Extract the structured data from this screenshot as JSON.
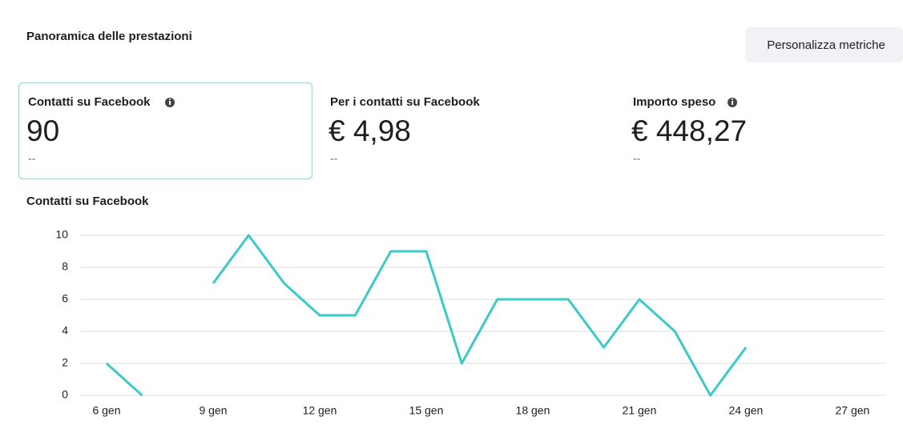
{
  "header": {
    "title": "Panoramica delle prestazioni",
    "button": "Personalizza metriche"
  },
  "metrics": [
    {
      "label": "Contatti su Facebook",
      "value": "90",
      "change": "--"
    },
    {
      "label": "Per i contatti su Facebook",
      "value": "€ 4,98",
      "change": "--"
    },
    {
      "label": "Importo speso",
      "value": "€ 448,27",
      "change": "--"
    }
  ],
  "chart_data": {
    "type": "line",
    "title": "Contatti su Facebook",
    "categories": [
      "6 gen",
      null,
      null,
      "9 gen",
      null,
      null,
      "12 gen",
      null,
      null,
      "15 gen",
      null,
      null,
      "18 gen",
      null,
      null,
      "21 gen",
      null,
      null,
      "24 gen",
      null,
      null,
      "27 gen"
    ],
    "values": [
      2,
      0,
      null,
      7,
      10,
      7,
      5,
      5,
      9,
      9,
      2,
      6,
      6,
      6,
      3,
      6,
      4,
      0,
      3,
      null,
      null,
      null
    ],
    "color": "#3ccac7",
    "ylim": [
      0,
      10
    ],
    "yticks": [
      0,
      2,
      4,
      6,
      8,
      10
    ],
    "grid": true
  }
}
